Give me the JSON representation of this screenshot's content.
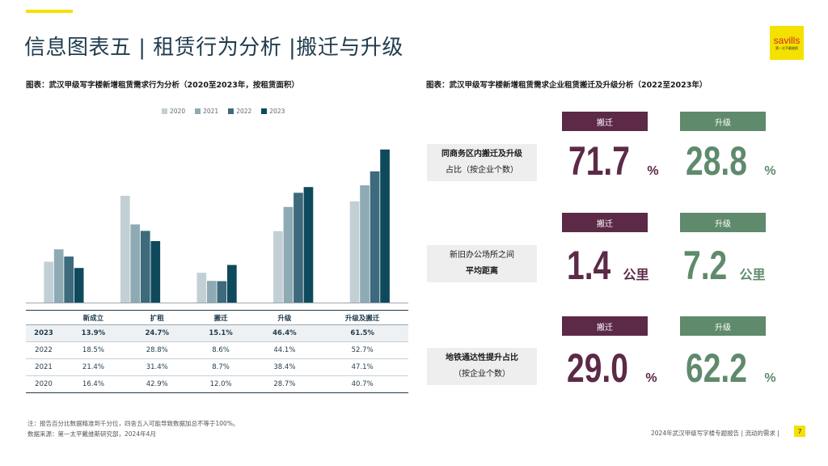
{
  "header": {
    "title": "信息图表五 | 租赁行为分析 |搬迁与升级",
    "logo_text": "savills",
    "logo_sub": "第一太平戴维斯"
  },
  "left": {
    "caption": "图表：武汉甲级写字楼新增租赁需求行为分析（2020至2023年，按租赁面积）"
  },
  "right": {
    "caption": "图表：武汉甲级写字楼新增租赁需求企业租赁搬迁及升级分析（2022至2023年）",
    "rows": [
      {
        "label_line1": "同商务区内搬迁及升级",
        "label_line2": "占比（按企业个数）",
        "move_badge": "搬迁",
        "up_badge": "升级",
        "move_value": "71.7",
        "move_unit": "%",
        "up_value": "28.8",
        "up_unit": "%"
      },
      {
        "label_line1": "新旧办公场所之间",
        "label_line2": "平均距离",
        "move_badge": "搬迁",
        "up_badge": "升级",
        "move_value": "1.4",
        "move_unit": "公里",
        "up_value": "7.2",
        "up_unit": "公里"
      },
      {
        "label_line1": "地铁通达性提升占比",
        "label_line2": "（按企业个数）",
        "move_badge": "搬迁",
        "up_badge": "升级",
        "move_value": "29.0",
        "move_unit": "%",
        "up_value": "62.2",
        "up_unit": "%"
      }
    ]
  },
  "table": {
    "headers": [
      "",
      "新成立",
      "扩租",
      "搬迁",
      "升级",
      "升级及搬迁"
    ],
    "rows": [
      {
        "year": "2023",
        "cells": [
          "13.9%",
          "24.7%",
          "15.1%",
          "46.4%",
          "61.5%"
        ]
      },
      {
        "year": "2022",
        "cells": [
          "18.5%",
          "28.8%",
          "8.6%",
          "44.1%",
          "52.7%"
        ]
      },
      {
        "year": "2021",
        "cells": [
          "21.4%",
          "31.4%",
          "8.7%",
          "38.4%",
          "47.1%"
        ]
      },
      {
        "year": "2020",
        "cells": [
          "16.4%",
          "42.9%",
          "12.0%",
          "28.7%",
          "40.7%"
        ]
      }
    ]
  },
  "notes": {
    "line1": "注：报告百分比数据精准到千分位，四舍五入可能导致数据加总不等于100%。",
    "line2": "数据来源：第一太平戴维斯研究部，2024年4月"
  },
  "footer": {
    "text": "2024年武汉甲级写字楼专题报告 | 流动的需求 |",
    "page": "7"
  },
  "chart_data": {
    "type": "bar",
    "categories": [
      "新成立",
      "扩租",
      "搬迁",
      "升级",
      "升级及搬迁"
    ],
    "series": [
      {
        "name": "2020",
        "values": [
          16.4,
          42.9,
          12.0,
          28.7,
          40.7
        ],
        "color": "#c2d0d6"
      },
      {
        "name": "2021",
        "values": [
          21.4,
          31.4,
          8.7,
          38.4,
          47.1
        ],
        "color": "#8eaab4"
      },
      {
        "name": "2022",
        "values": [
          18.5,
          28.8,
          8.6,
          44.1,
          52.7
        ],
        "color": "#3d6a7c"
      },
      {
        "name": "2023",
        "values": [
          13.9,
          24.7,
          15.1,
          46.4,
          61.5
        ],
        "color": "#0f4a5c"
      }
    ],
    "title": "",
    "xlabel": "",
    "ylabel": "",
    "ylim": [
      0,
      65
    ],
    "grid": false,
    "legend": "top"
  }
}
